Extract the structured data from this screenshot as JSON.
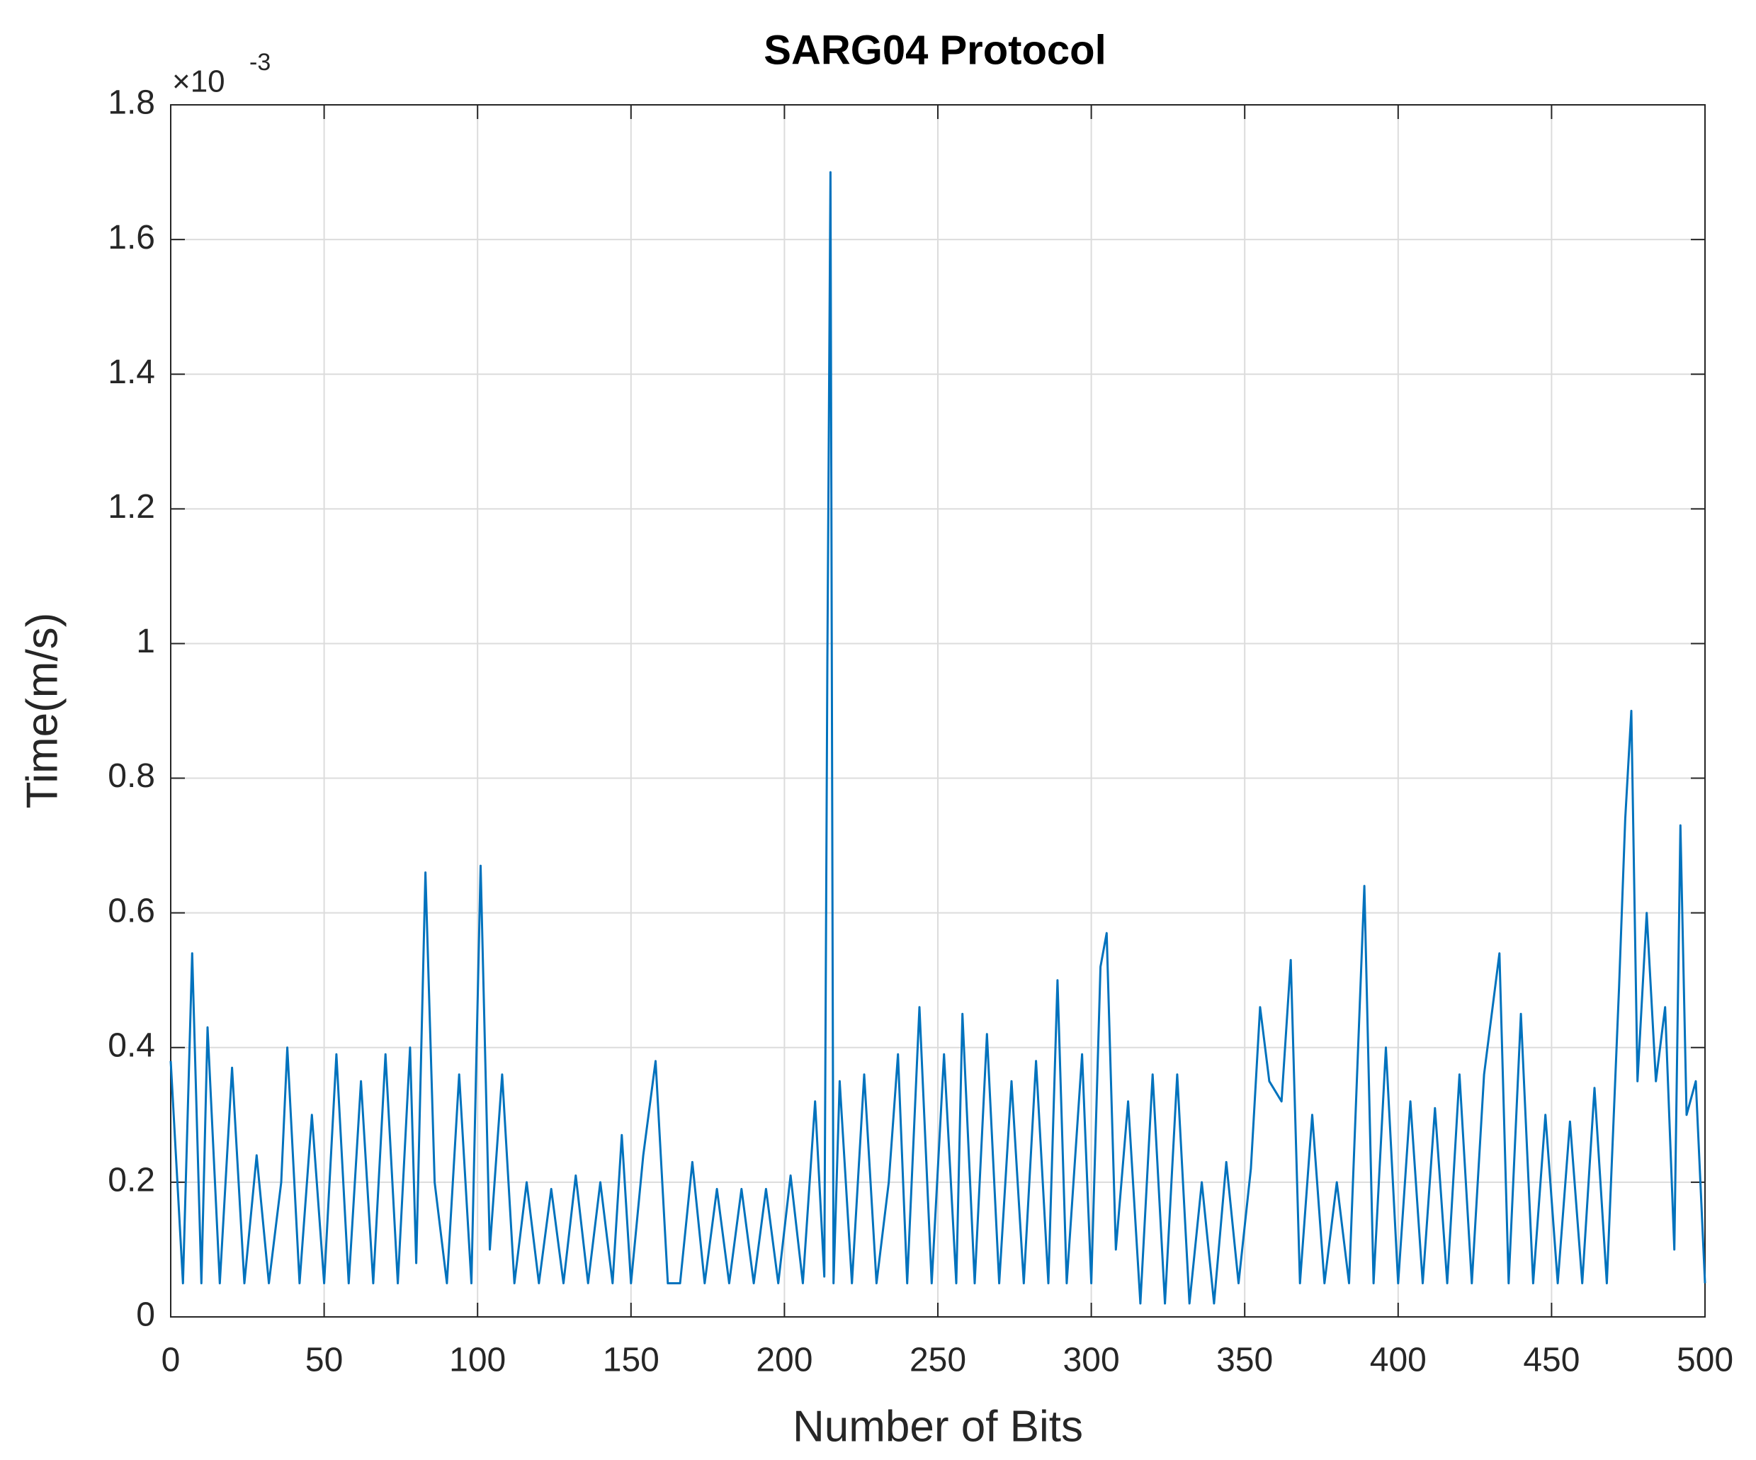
{
  "chart_data": {
    "type": "line",
    "title": "SARG04 Protocol",
    "x_label": "Number of Bits",
    "y_label": "Time(m/s)",
    "y_multiplier_base": "×10",
    "y_multiplier_exponent": "-3",
    "color": "#0072bd",
    "grid": true,
    "xlim": [
      0,
      500
    ],
    "ylim": [
      0,
      1.8
    ],
    "xticks": [
      0,
      50,
      100,
      150,
      200,
      250,
      300,
      350,
      400,
      450,
      500
    ],
    "yticks": [
      0,
      0.2,
      0.4,
      0.6,
      0.8,
      1,
      1.2,
      1.4,
      1.6,
      1.8
    ],
    "x": [
      0,
      4,
      7,
      10,
      12,
      16,
      20,
      24,
      28,
      32,
      36,
      38,
      42,
      46,
      50,
      54,
      58,
      62,
      66,
      70,
      74,
      78,
      80,
      83,
      86,
      90,
      94,
      98,
      101,
      104,
      108,
      112,
      116,
      120,
      124,
      128,
      132,
      136,
      140,
      144,
      147,
      150,
      154,
      158,
      162,
      166,
      170,
      174,
      178,
      182,
      186,
      190,
      194,
      198,
      202,
      206,
      210,
      213,
      214,
      215,
      216,
      218,
      222,
      226,
      230,
      234,
      237,
      240,
      244,
      248,
      252,
      256,
      258,
      262,
      266,
      270,
      274,
      278,
      282,
      286,
      289,
      292,
      297,
      300,
      303,
      305,
      308,
      312,
      316,
      320,
      324,
      328,
      332,
      336,
      340,
      344,
      348,
      352,
      355,
      358,
      362,
      365,
      368,
      372,
      376,
      380,
      384,
      389,
      392,
      396,
      400,
      404,
      408,
      412,
      416,
      420,
      424,
      428,
      433,
      436,
      440,
      444,
      448,
      452,
      456,
      460,
      464,
      468,
      472,
      474,
      476,
      478,
      481,
      484,
      487,
      490,
      492,
      494,
      497,
      500
    ],
    "values": [
      0.38,
      0.05,
      0.54,
      0.05,
      0.43,
      0.05,
      0.37,
      0.05,
      0.24,
      0.05,
      0.2,
      0.4,
      0.05,
      0.3,
      0.05,
      0.39,
      0.05,
      0.35,
      0.05,
      0.39,
      0.05,
      0.4,
      0.08,
      0.66,
      0.2,
      0.05,
      0.36,
      0.05,
      0.67,
      0.1,
      0.36,
      0.05,
      0.2,
      0.05,
      0.19,
      0.05,
      0.21,
      0.05,
      0.2,
      0.05,
      0.27,
      0.05,
      0.24,
      0.38,
      0.05,
      0.05,
      0.23,
      0.05,
      0.19,
      0.05,
      0.19,
      0.05,
      0.19,
      0.05,
      0.21,
      0.05,
      0.32,
      0.06,
      0.97,
      1.7,
      0.05,
      0.35,
      0.05,
      0.36,
      0.05,
      0.2,
      0.39,
      0.05,
      0.46,
      0.05,
      0.39,
      0.05,
      0.45,
      0.05,
      0.42,
      0.05,
      0.35,
      0.05,
      0.38,
      0.05,
      0.5,
      0.05,
      0.39,
      0.05,
      0.52,
      0.57,
      0.1,
      0.32,
      0.02,
      0.36,
      0.02,
      0.36,
      0.02,
      0.2,
      0.02,
      0.23,
      0.05,
      0.22,
      0.46,
      0.35,
      0.32,
      0.53,
      0.05,
      0.3,
      0.05,
      0.2,
      0.05,
      0.64,
      0.05,
      0.4,
      0.05,
      0.32,
      0.05,
      0.31,
      0.05,
      0.36,
      0.05,
      0.36,
      0.54,
      0.05,
      0.45,
      0.05,
      0.3,
      0.05,
      0.29,
      0.05,
      0.34,
      0.05,
      0.49,
      0.74,
      0.9,
      0.35,
      0.6,
      0.35,
      0.46,
      0.1,
      0.73,
      0.3,
      0.35,
      0.05
    ]
  }
}
